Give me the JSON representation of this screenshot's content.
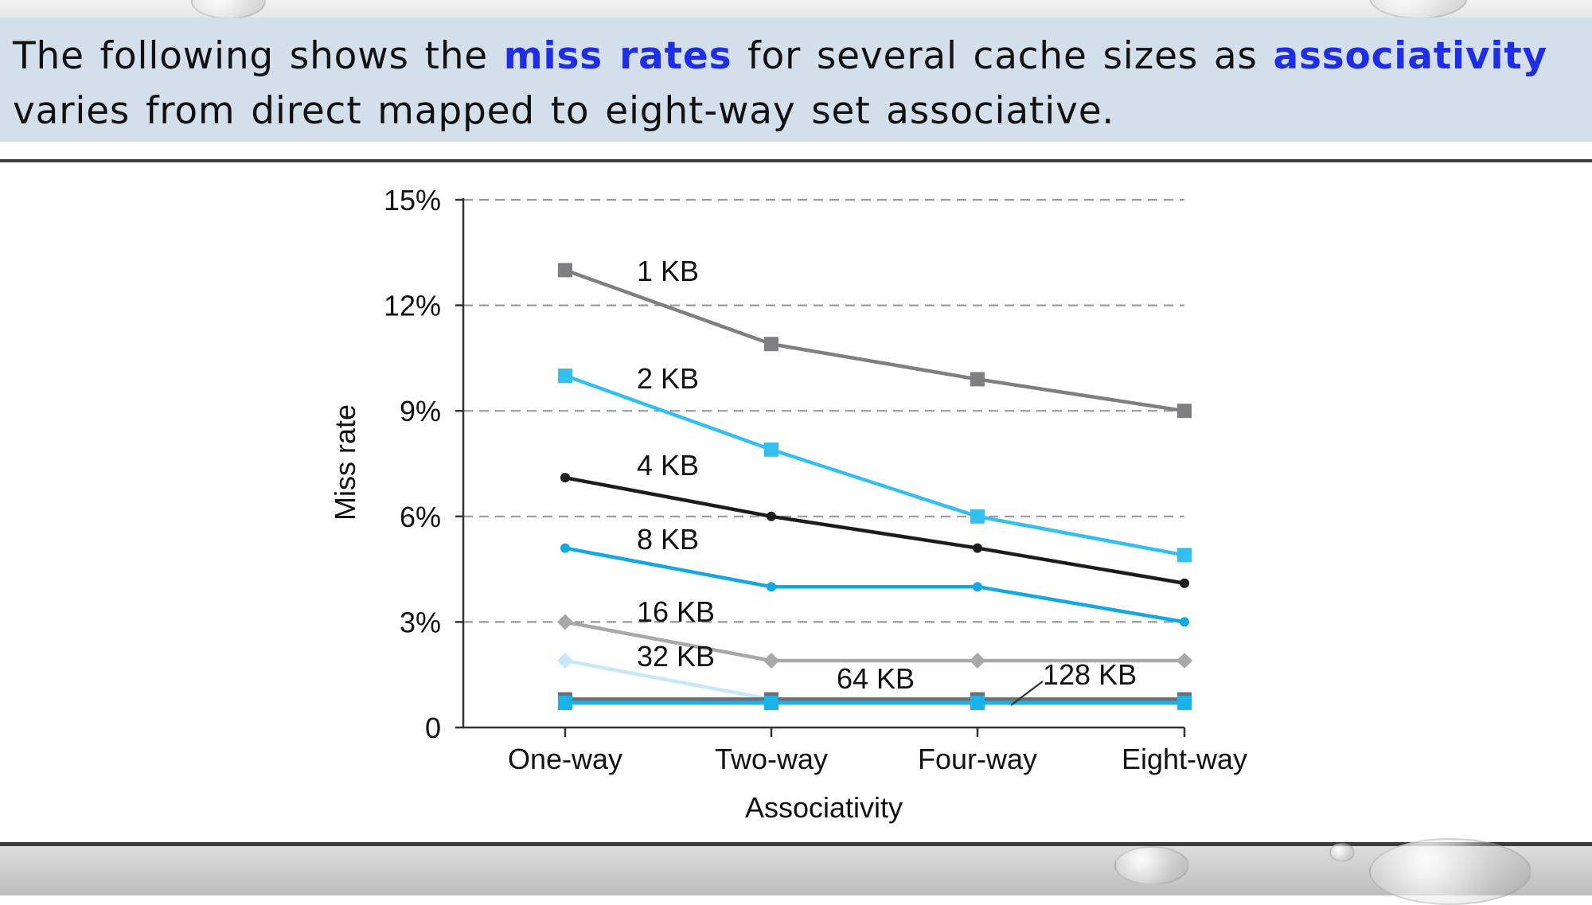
{
  "slide": {
    "text_parts": [
      {
        "text": "The following shows the ",
        "highlight": false
      },
      {
        "text": "miss rates",
        "highlight": true
      },
      {
        "text": " for several cache sizes as ",
        "highlight": false
      },
      {
        "text": "associativity",
        "highlight": true
      },
      {
        "text": " varies from direct mapped to eight-way set associative.",
        "highlight": false
      }
    ],
    "highlight_color": "#1f2ee6",
    "banner_color": "#d4dfec"
  },
  "chart_data": {
    "type": "line",
    "title": "",
    "xlabel": "Associativity",
    "ylabel": "Miss rate",
    "categories": [
      "One-way",
      "Two-way",
      "Four-way",
      "Eight-way"
    ],
    "ylim": [
      0,
      15
    ],
    "yticks": [
      0,
      3,
      6,
      9,
      12,
      15
    ],
    "ytick_labels": [
      "0",
      "3%",
      "6%",
      "9%",
      "12%",
      "15%"
    ],
    "grid": "horizontal dashed",
    "legend": "none (inline labels)",
    "series": [
      {
        "name": "1 KB",
        "values": [
          13.0,
          10.9,
          9.9,
          9.0
        ],
        "color": "#7f7f81",
        "marker": "square"
      },
      {
        "name": "2 KB",
        "values": [
          10.0,
          7.9,
          6.0,
          4.9
        ],
        "color": "#33bff0",
        "marker": "square"
      },
      {
        "name": "4 KB",
        "values": [
          7.1,
          6.0,
          5.1,
          4.1
        ],
        "color": "#1c1c1c",
        "marker": "circle"
      },
      {
        "name": "8 KB",
        "values": [
          5.1,
          4.0,
          4.0,
          3.0
        ],
        "color": "#14a8e3",
        "marker": "circle"
      },
      {
        "name": "16 KB",
        "values": [
          3.0,
          1.9,
          1.9,
          1.9
        ],
        "color": "#a8a8aa",
        "marker": "diamond"
      },
      {
        "name": "32 KB",
        "values": [
          1.9,
          0.8,
          0.8,
          0.8
        ],
        "color": "#c6e8f8",
        "marker": "diamond"
      },
      {
        "name": "64 KB",
        "values": [
          0.8,
          0.8,
          0.8,
          0.8
        ],
        "color": "#6e6e70",
        "marker": "square"
      },
      {
        "name": "128 KB",
        "values": [
          0.7,
          0.7,
          0.7,
          0.7
        ],
        "color": "#19b3ea",
        "marker": "square"
      }
    ]
  }
}
